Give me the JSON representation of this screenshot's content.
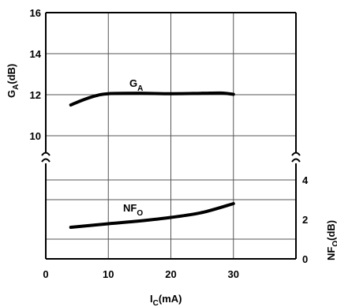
{
  "chart_data": {
    "type": "line",
    "x_axis": {
      "label_main": "I",
      "label_sub": "C",
      "label_unit": "(mA)",
      "range": [
        0,
        40
      ],
      "ticks": [
        0,
        10,
        20,
        30
      ],
      "tick_labels": [
        "0",
        "10",
        "20",
        "30"
      ]
    },
    "y_left": {
      "label_main": "G",
      "label_sub": "A",
      "label_unit": "(dB)",
      "range": [
        10,
        16
      ],
      "ticks": [
        10,
        12,
        14,
        16
      ],
      "tick_labels": [
        "10",
        "12",
        "14",
        "16"
      ]
    },
    "y_right": {
      "label_main": "NF",
      "label_sub": "O",
      "label_unit": "(dB)",
      "range": [
        0,
        4
      ],
      "ticks": [
        0,
        2,
        4
      ],
      "tick_labels": [
        "0",
        "2",
        "4"
      ]
    },
    "series": [
      {
        "name_main": "G",
        "name_sub": "A",
        "axis": "left",
        "x": [
          4,
          6,
          8,
          10,
          15,
          20,
          25,
          28,
          30
        ],
        "y": [
          11.5,
          11.75,
          11.95,
          12.05,
          12.07,
          12.05,
          12.07,
          12.08,
          12.02
        ]
      },
      {
        "name_main": "NF",
        "name_sub": "O",
        "axis": "right",
        "x": [
          4,
          10,
          15,
          20,
          25,
          30
        ],
        "y": [
          1.6,
          1.78,
          1.92,
          2.1,
          2.35,
          2.8
        ]
      }
    ],
    "grid": true,
    "axis_break": true,
    "line_color": "#000000"
  }
}
